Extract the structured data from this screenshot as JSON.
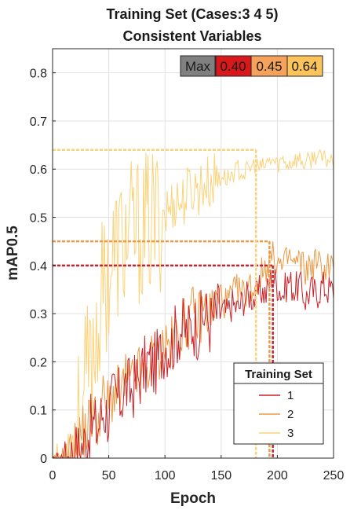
{
  "chart_data": {
    "type": "line",
    "title": [
      "Training Set (Cases:3 4 5)",
      "Consistent Variables"
    ],
    "xlabel": "Epoch",
    "ylabel": "mAP0.5",
    "xlim": [
      0,
      250
    ],
    "ylim": [
      0,
      0.85
    ],
    "xticks": [
      0,
      50,
      100,
      150,
      200,
      250
    ],
    "yticks": [
      0,
      0.1,
      0.2,
      0.3,
      0.4,
      0.5,
      0.6,
      0.7,
      0.8
    ],
    "ytick_labels": [
      "0",
      "0.1",
      "0.2",
      "0.3",
      "0.4",
      "0.5",
      "0.6",
      "0.7",
      "0.8"
    ],
    "grid": true,
    "legend": {
      "title": "Training Set",
      "placement": "bottom-right"
    },
    "max_box": {
      "label": "Max",
      "label_color": "#808080",
      "entries": [
        {
          "text": "0.40",
          "color": "#d7191c"
        },
        {
          "text": "0.45",
          "color": "#f4a25c"
        },
        {
          "text": "0.64",
          "color": "#fcc45a"
        }
      ]
    },
    "series": [
      {
        "name": "1",
        "color": "#c8222a",
        "max": 0.4,
        "max_epoch": 196,
        "x": [
          0,
          10,
          20,
          25,
          30,
          35,
          40,
          45,
          50,
          55,
          60,
          65,
          70,
          75,
          80,
          85,
          90,
          95,
          100,
          105,
          110,
          115,
          120,
          125,
          130,
          135,
          140,
          145,
          150,
          155,
          160,
          165,
          170,
          175,
          180,
          185,
          190,
          195,
          200,
          205,
          210,
          215,
          220,
          225,
          230,
          235,
          240,
          245,
          250
        ],
        "y": [
          0,
          0,
          0.01,
          0.02,
          0.04,
          0.07,
          0.06,
          0.1,
          0.09,
          0.13,
          0.12,
          0.15,
          0.14,
          0.16,
          0.18,
          0.2,
          0.19,
          0.21,
          0.24,
          0.23,
          0.26,
          0.27,
          0.26,
          0.28,
          0.27,
          0.3,
          0.28,
          0.3,
          0.31,
          0.3,
          0.32,
          0.31,
          0.33,
          0.34,
          0.33,
          0.35,
          0.34,
          0.38,
          0.36,
          0.34,
          0.37,
          0.35,
          0.36,
          0.33,
          0.35,
          0.34,
          0.36,
          0.35,
          0.35
        ]
      },
      {
        "name": "2",
        "color": "#eb9a45",
        "max": 0.45,
        "max_epoch": 193,
        "x": [
          0,
          10,
          20,
          25,
          30,
          35,
          40,
          45,
          50,
          55,
          60,
          65,
          70,
          75,
          80,
          85,
          90,
          95,
          100,
          105,
          110,
          115,
          120,
          125,
          130,
          135,
          140,
          145,
          150,
          155,
          160,
          165,
          170,
          175,
          180,
          185,
          190,
          195,
          200,
          205,
          210,
          215,
          220,
          225,
          230,
          235,
          240,
          245,
          250
        ],
        "y": [
          0,
          0,
          0.02,
          0.05,
          0.06,
          0.09,
          0.08,
          0.12,
          0.11,
          0.14,
          0.13,
          0.16,
          0.15,
          0.18,
          0.17,
          0.19,
          0.21,
          0.22,
          0.24,
          0.23,
          0.26,
          0.27,
          0.28,
          0.3,
          0.29,
          0.31,
          0.3,
          0.32,
          0.33,
          0.32,
          0.34,
          0.35,
          0.34,
          0.36,
          0.35,
          0.38,
          0.4,
          0.42,
          0.41,
          0.39,
          0.42,
          0.4,
          0.41,
          0.39,
          0.4,
          0.41,
          0.39,
          0.4,
          0.4
        ]
      },
      {
        "name": "3",
        "color": "#fbd27a",
        "max": 0.64,
        "max_epoch": 181,
        "x": [
          0,
          10,
          15,
          20,
          25,
          30,
          35,
          40,
          45,
          50,
          55,
          60,
          65,
          70,
          75,
          80,
          85,
          90,
          95,
          100,
          105,
          110,
          115,
          120,
          125,
          130,
          135,
          140,
          145,
          150,
          155,
          160,
          165,
          170,
          175,
          180,
          185,
          190,
          195,
          200,
          205,
          210,
          215,
          220,
          225,
          230,
          235,
          240,
          245,
          250
        ],
        "y": [
          0,
          0,
          0.01,
          0.04,
          0.09,
          0.15,
          0.2,
          0.28,
          0.35,
          0.39,
          0.42,
          0.44,
          0.45,
          0.46,
          0.47,
          0.47,
          0.48,
          0.49,
          0.5,
          0.51,
          0.52,
          0.54,
          0.53,
          0.55,
          0.56,
          0.56,
          0.57,
          0.57,
          0.58,
          0.59,
          0.58,
          0.59,
          0.6,
          0.59,
          0.6,
          0.61,
          0.6,
          0.61,
          0.62,
          0.61,
          0.62,
          0.61,
          0.62,
          0.62,
          0.61,
          0.62,
          0.63,
          0.62,
          0.62,
          0.62
        ]
      }
    ]
  }
}
